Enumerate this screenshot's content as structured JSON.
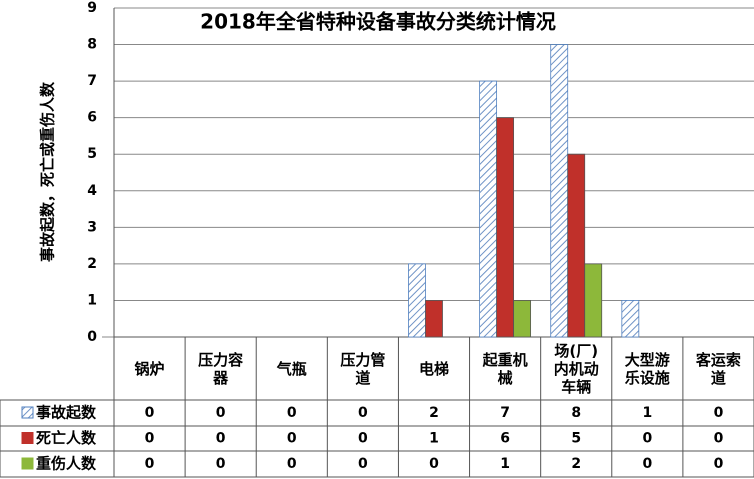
{
  "chart_data": {
    "type": "bar",
    "title": "2018年全省特种设备事故分类统计情况",
    "y_label": "事故起数，死亡或重伤人数",
    "categories": [
      "锅炉",
      "压力容器",
      "气瓶",
      "压力管道",
      "电梯",
      "起重机械",
      "场(厂)内机动车辆",
      "大型游乐设施",
      "客运索道"
    ],
    "series": [
      {
        "name": "事故起数",
        "color": "#4f7fbf",
        "values": [
          0,
          0,
          0,
          0,
          2,
          7,
          8,
          1,
          0
        ]
      },
      {
        "name": "死亡人数",
        "color": "#c0302a",
        "values": [
          0,
          0,
          0,
          0,
          1,
          6,
          5,
          0,
          0
        ]
      },
      {
        "name": "重伤人数",
        "color": "#8db83a",
        "values": [
          0,
          0,
          0,
          0,
          0,
          1,
          2,
          0,
          0
        ]
      }
    ],
    "ylim": [
      0,
      9
    ],
    "yticks": [
      0,
      1,
      2,
      3,
      4,
      5,
      6,
      7,
      8,
      9
    ],
    "grid": true
  }
}
